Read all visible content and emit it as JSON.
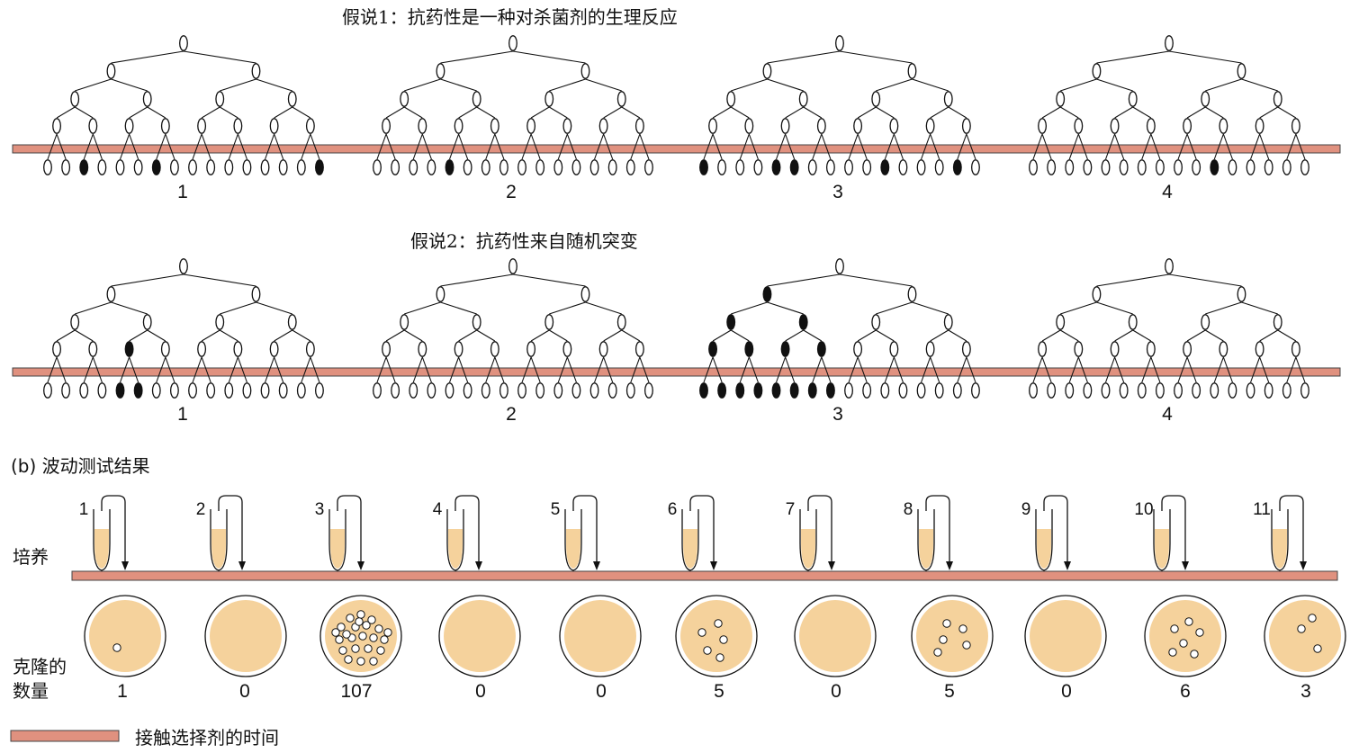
{
  "hypothesis1": {
    "title": "假说1：抗药性是一种对杀菌剂的生理反应",
    "trees": [
      {
        "label": "1",
        "resistant_leaves": [
          2,
          6,
          15
        ]
      },
      {
        "label": "2",
        "resistant_leaves": [
          4
        ]
      },
      {
        "label": "3",
        "resistant_leaves": [
          0,
          4,
          5,
          10,
          14
        ]
      },
      {
        "label": "4",
        "resistant_leaves": [
          10
        ]
      }
    ]
  },
  "hypothesis2": {
    "title": "假说2：抗药性来自随机突变",
    "trees": [
      {
        "label": "1",
        "resistant_leaves": [
          4,
          5
        ],
        "resistant_nodes": [
          "3-2"
        ]
      },
      {
        "label": "2",
        "resistant_leaves": [],
        "resistant_nodes": []
      },
      {
        "label": "3",
        "resistant_leaves": [
          0,
          1,
          2,
          3,
          4,
          5,
          6,
          7
        ],
        "resistant_nodes": [
          "1-0",
          "2-0",
          "2-1",
          "3-0",
          "3-1",
          "3-2",
          "3-3"
        ]
      },
      {
        "label": "4",
        "resistant_leaves": [],
        "resistant_nodes": []
      }
    ]
  },
  "partB": {
    "title": "(b)  波动测试结果",
    "culture_label": "培养",
    "colony_label_line1": "克隆的",
    "colony_label_line2": "数量",
    "tubes": [
      {
        "label": "1",
        "count": "1"
      },
      {
        "label": "2",
        "count": "0"
      },
      {
        "label": "3",
        "count": "107"
      },
      {
        "label": "4",
        "count": "0"
      },
      {
        "label": "5",
        "count": "0"
      },
      {
        "label": "6",
        "count": "5"
      },
      {
        "label": "7",
        "count": "0"
      },
      {
        "label": "8",
        "count": "5"
      },
      {
        "label": "9",
        "count": "0"
      },
      {
        "label": "10",
        "count": "6"
      },
      {
        "label": "11",
        "count": "3"
      }
    ]
  },
  "legend": {
    "label": "接触选择剂的时间"
  },
  "colors": {
    "bar": "#e0917f",
    "bar_stroke": "#444444",
    "medium": "#f5d29c",
    "ink": "#111111"
  }
}
